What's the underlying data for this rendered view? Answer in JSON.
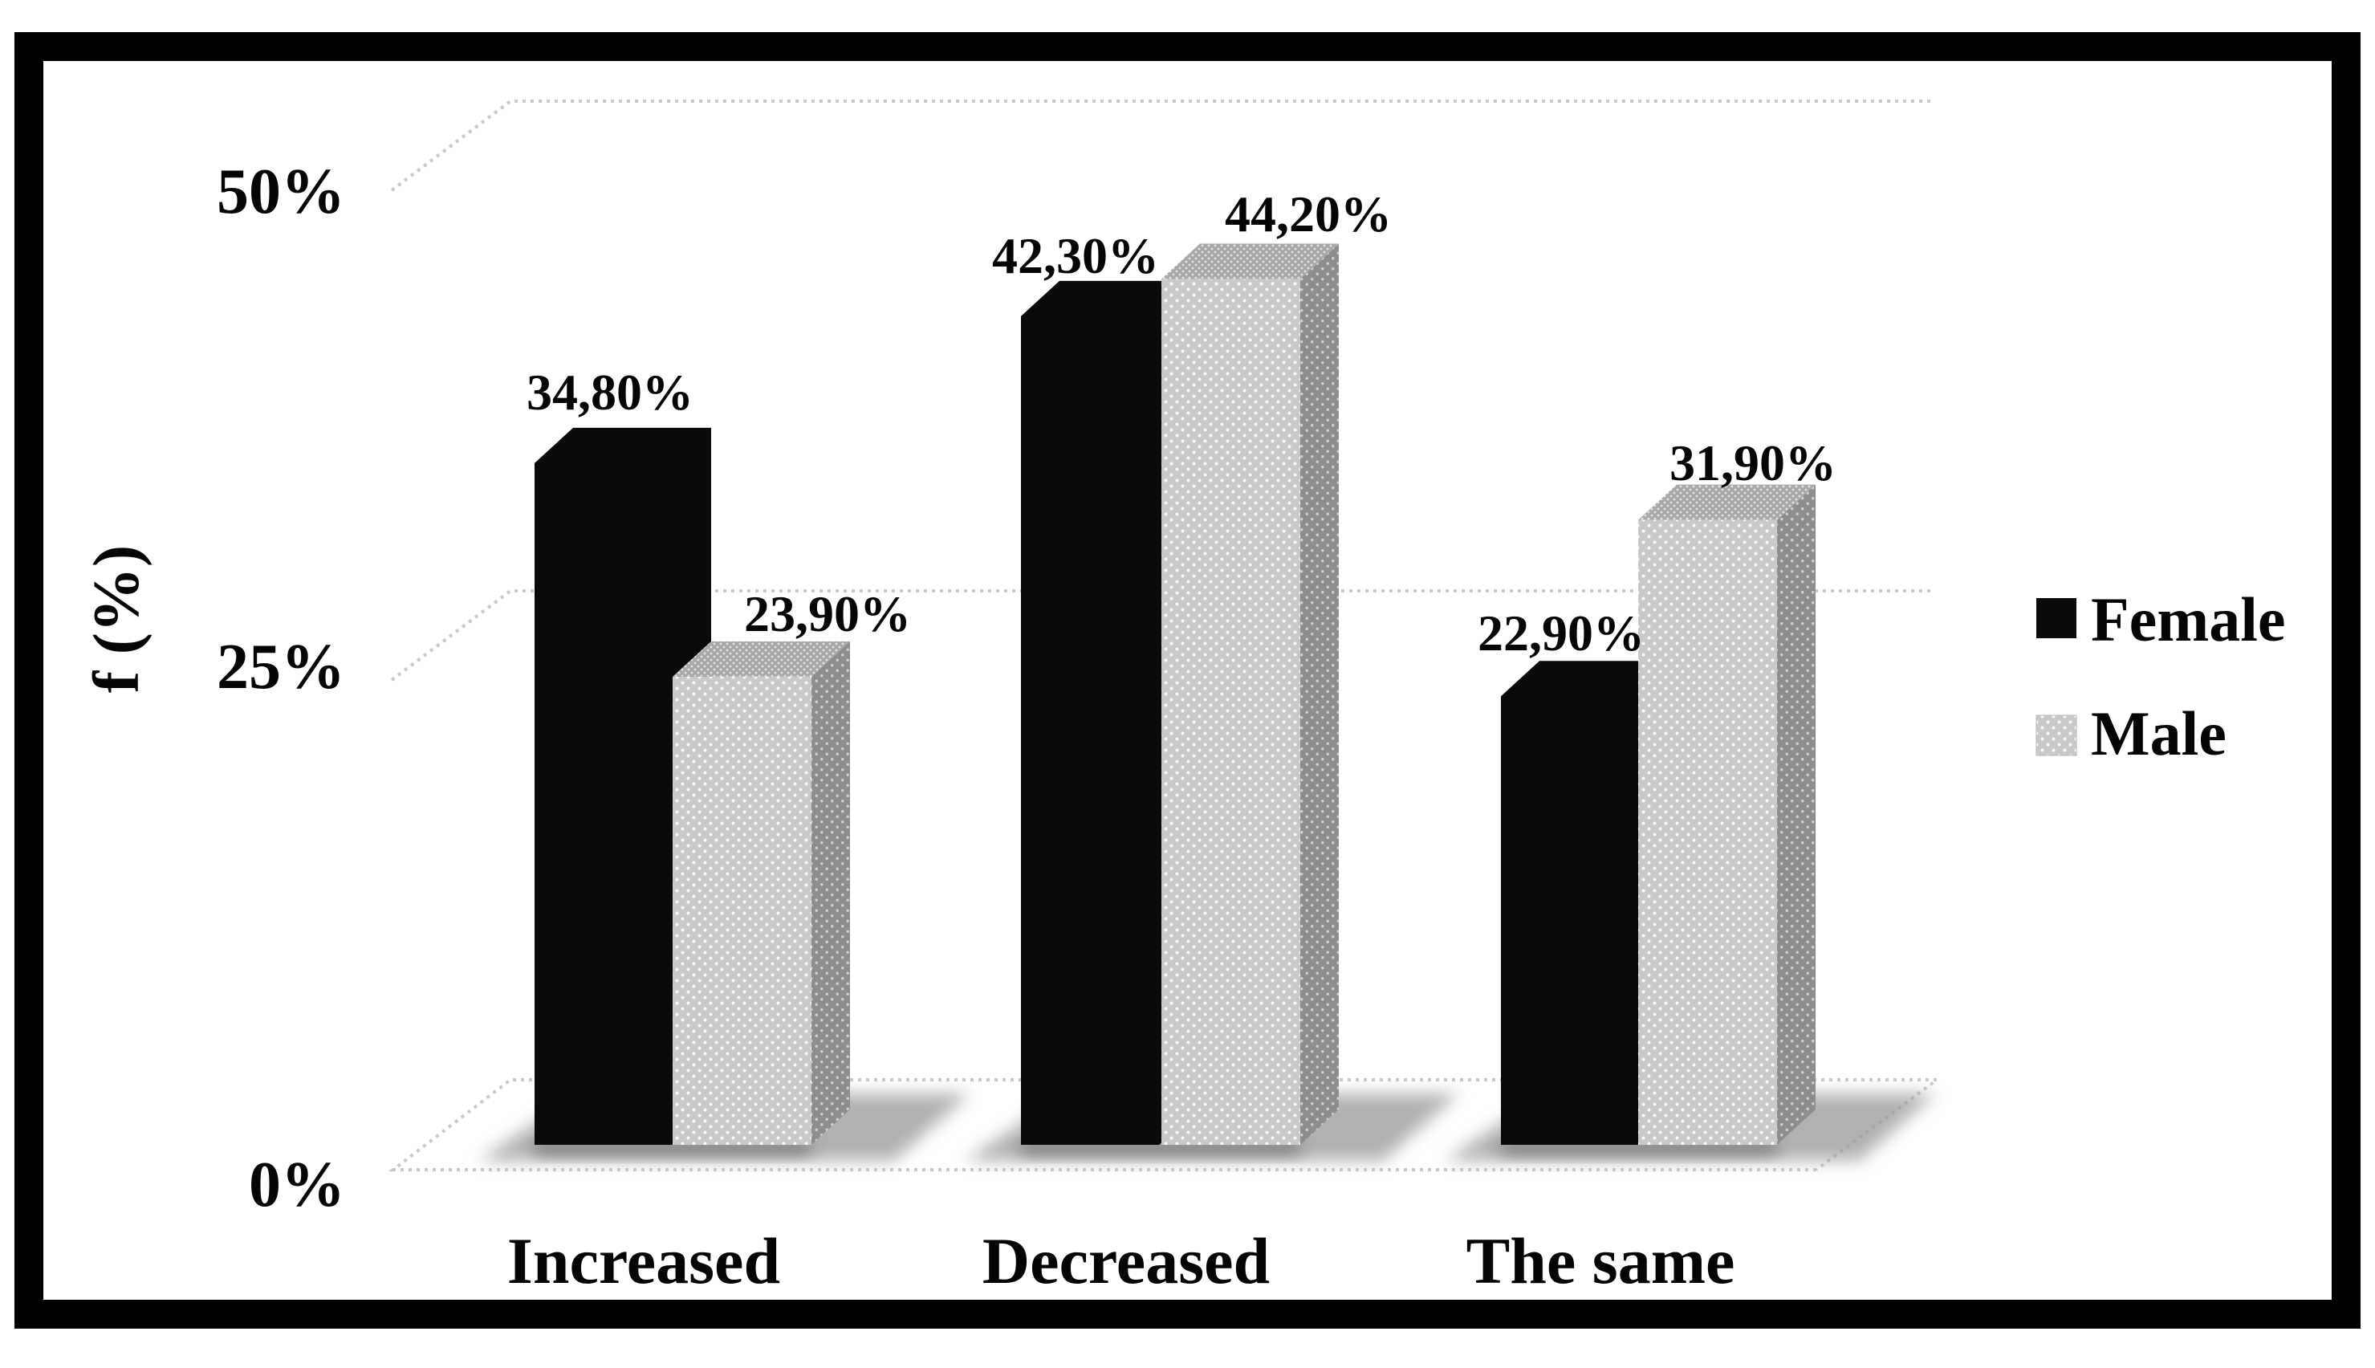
{
  "figure": {
    "background": "#ffffff",
    "frame_color": "#000000"
  },
  "chart_data": {
    "type": "bar",
    "projection": "3d-clustered",
    "title": "",
    "categories": [
      "Increased",
      "Decreased",
      "The same"
    ],
    "series": [
      {
        "name": "Female",
        "color": "#0a0a0a",
        "values": [
          34.8,
          42.3,
          22.9
        ],
        "data_labels": [
          "34,80%",
          "42,30%",
          "22,90%"
        ]
      },
      {
        "name": "Male",
        "color": "#c9c9c9",
        "values": [
          23.9,
          44.2,
          31.9
        ],
        "data_labels": [
          "23,90%",
          "44,20%",
          "31,90%"
        ]
      }
    ],
    "xlabel": "",
    "ylabel": "f (%)",
    "ylim": [
      0,
      50
    ],
    "yticks": [
      {
        "value": 0,
        "label": "0%"
      },
      {
        "value": 25,
        "label": "25%"
      },
      {
        "value": 50,
        "label": "50%"
      }
    ],
    "grid": true,
    "gridline_color": "#c9c9c9",
    "legend_position": "right",
    "legend": [
      {
        "label": "Female",
        "swatch": "black"
      },
      {
        "label": "Male",
        "swatch": "gray-dotted"
      }
    ],
    "decimal_separator": ","
  }
}
